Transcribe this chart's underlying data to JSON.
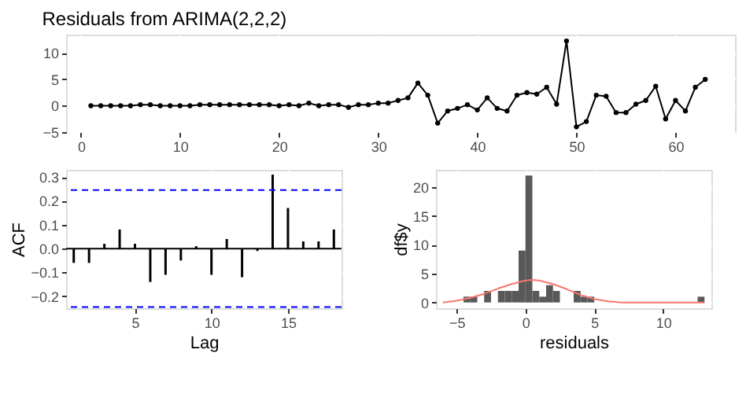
{
  "chart_data": [
    {
      "type": "line",
      "title": "Residuals from ARIMA(2,2,2)",
      "marker": "circle",
      "grid": true,
      "x": [
        1,
        2,
        3,
        4,
        5,
        6,
        7,
        8,
        9,
        10,
        11,
        12,
        13,
        14,
        15,
        16,
        17,
        18,
        19,
        20,
        21,
        22,
        23,
        24,
        25,
        26,
        27,
        28,
        29,
        30,
        31,
        32,
        33,
        34,
        35,
        36,
        37,
        38,
        39,
        40,
        41,
        42,
        43,
        44,
        45,
        46,
        47,
        48,
        49,
        50,
        51,
        52,
        53,
        54,
        55,
        56,
        57,
        58,
        59,
        60,
        61,
        62,
        63
      ],
      "values": [
        0,
        0,
        0,
        0,
        0,
        0.2,
        0.2,
        0,
        0,
        0,
        0,
        0.2,
        0.2,
        0.2,
        0.2,
        0.2,
        0.2,
        0.2,
        0.2,
        0,
        0.2,
        0,
        0.5,
        0,
        0.2,
        0.2,
        -0.3,
        0.2,
        0.2,
        0.5,
        0.5,
        1,
        1.5,
        4.3,
        2,
        -3.3,
        -1,
        -0.5,
        0.2,
        -0.8,
        1.5,
        -0.5,
        -1,
        2,
        2.5,
        2.2,
        3.5,
        0.3,
        12.3,
        -4,
        -3,
        2,
        1.8,
        -1.3,
        -1.3,
        0.3,
        1,
        3.7,
        -2.5,
        1,
        -1,
        3.5,
        5
      ],
      "color": "#000000",
      "xlim": [
        -1.5,
        66
      ],
      "xticks": [
        0,
        10,
        20,
        30,
        40,
        50,
        60
      ],
      "ylim": [
        -5,
        13.5
      ],
      "yticks": [
        -5,
        0,
        5,
        10
      ]
    },
    {
      "type": "bar",
      "xlabel": "Lag",
      "ylabel": "ACF",
      "grid": true,
      "color": "#000000",
      "x": [
        1,
        2,
        3,
        4,
        5,
        6,
        7,
        8,
        9,
        10,
        11,
        12,
        13,
        14,
        15,
        16,
        17,
        18
      ],
      "values": [
        -0.06,
        -0.06,
        0.02,
        0.08,
        0.02,
        -0.14,
        -0.11,
        -0.05,
        0.01,
        -0.11,
        0.04,
        -0.12,
        -0.01,
        0.31,
        0.17,
        0.03,
        0.03,
        0.08
      ],
      "xlim": [
        0.5,
        18.5
      ],
      "xticks": [
        5,
        10,
        15
      ],
      "ylim": [
        -0.25,
        0.33
      ],
      "yticks": [
        -0.2,
        -0.1,
        {
          "value": 0,
          "label": "0.0"
        },
        0.1,
        0.2,
        0.3
      ],
      "ref_lines": [
        {
          "axis": "y",
          "value": 0,
          "color": "#000000",
          "line_style": "solid"
        },
        {
          "axis": "y",
          "value": 0.245,
          "color": "#0000ff",
          "line_style": "dashed"
        },
        {
          "axis": "y",
          "value": -0.245,
          "color": "#0000ff",
          "line_style": "dashed"
        }
      ]
    },
    {
      "type": "histogram",
      "xlabel": "residuals",
      "ylabel": "df$y",
      "grid": true,
      "color": "#595959",
      "bins": [
        -4.5,
        -4,
        -3.5,
        -3,
        -2.5,
        -2,
        -1.5,
        -1,
        -0.5,
        0,
        0.5,
        1,
        1.5,
        2,
        2.5,
        3,
        3.5,
        4,
        4.5,
        5,
        5.5,
        6,
        6.5,
        7,
        7.5,
        8,
        8.5,
        9,
        9.5,
        10,
        10.5,
        11,
        11.5,
        12,
        12.5,
        13
      ],
      "values": [
        1,
        1,
        0,
        2,
        0,
        2,
        2,
        2,
        9,
        22,
        2,
        1,
        3,
        2,
        0,
        0,
        2,
        1,
        1,
        0,
        0,
        0,
        0,
        0,
        0,
        0,
        0,
        0,
        0,
        0,
        0,
        0,
        0,
        0,
        1
      ],
      "series": [
        {
          "type": "line",
          "color": "#f8766d",
          "x": [
            -6,
            -5,
            -4,
            -3,
            -2,
            -1,
            0,
            0.5,
            1,
            2,
            3,
            4,
            5,
            6,
            7,
            13
          ],
          "values": [
            0,
            0.3,
            0.8,
            1.5,
            2.4,
            3.2,
            3.8,
            3.9,
            3.8,
            3.2,
            2.3,
            1.3,
            0.6,
            0.2,
            0,
            0
          ]
        }
      ],
      "xlim": [
        -6.5,
        13.5
      ],
      "xticks": [
        -5,
        0,
        5,
        10
      ],
      "ylim": [
        -1,
        23
      ],
      "yticks": [
        0,
        5,
        10,
        15,
        20
      ]
    }
  ]
}
